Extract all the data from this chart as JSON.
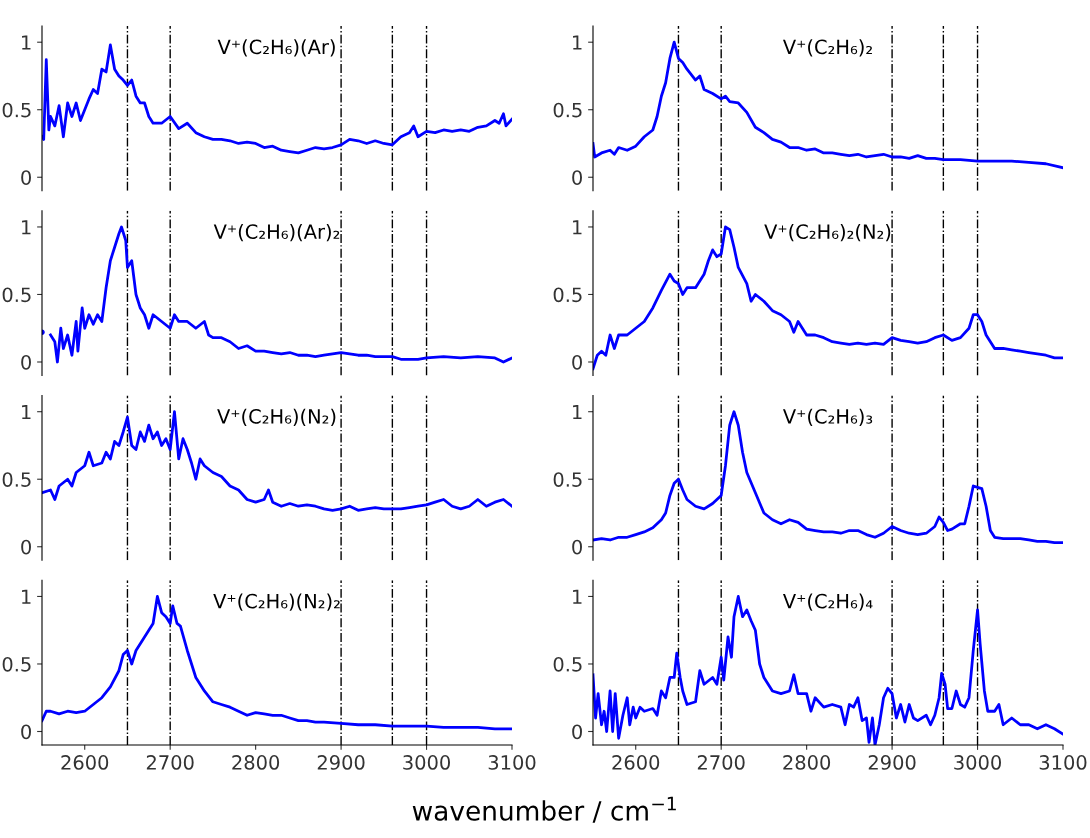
{
  "chart_data": [
    {
      "type": "line",
      "title": "V⁺(C₂H₆)(Ar)",
      "xlim": [
        2550,
        3100
      ],
      "ylim": [
        -0.1,
        1.12
      ],
      "yticks": [
        0,
        0.5,
        1
      ],
      "tick_labels": "y",
      "ref_lines": [
        {
          "axis": "x",
          "value": 2650,
          "color": "#000000",
          "line_style": "dashdot"
        },
        {
          "axis": "x",
          "value": 2700,
          "color": "#000000",
          "line_style": "dashdot"
        },
        {
          "axis": "x",
          "value": 2900,
          "color": "#000000",
          "line_style": "dashdot"
        },
        {
          "axis": "x",
          "value": 2960,
          "color": "#000000",
          "line_style": "dashdot"
        },
        {
          "axis": "x",
          "value": 3000,
          "color": "#000000",
          "line_style": "dashdot"
        }
      ],
      "x": [
        2550,
        2552,
        2555,
        2558,
        2560,
        2565,
        2570,
        2575,
        2580,
        2585,
        2590,
        2595,
        2600,
        2605,
        2610,
        2615,
        2620,
        2625,
        2630,
        2635,
        2640,
        2645,
        2650,
        2655,
        2660,
        2665,
        2670,
        2675,
        2680,
        2690,
        2700,
        2710,
        2720,
        2730,
        2740,
        2750,
        2760,
        2770,
        2780,
        2790,
        2800,
        2810,
        2820,
        2830,
        2840,
        2850,
        2860,
        2870,
        2880,
        2890,
        2900,
        2910,
        2920,
        2930,
        2940,
        2950,
        2960,
        2970,
        2980,
        2985,
        2990,
        3000,
        3010,
        3020,
        3030,
        3040,
        3050,
        3060,
        3070,
        3080,
        3085,
        3090,
        3093,
        3100
      ],
      "series": [
        {
          "color": "#0000ff",
          "values": [
            0.3,
            0.28,
            0.87,
            0.35,
            0.45,
            0.38,
            0.53,
            0.3,
            0.55,
            0.45,
            0.55,
            0.42,
            0.5,
            0.58,
            0.65,
            0.62,
            0.8,
            0.78,
            0.98,
            0.8,
            0.75,
            0.72,
            0.68,
            0.72,
            0.6,
            0.55,
            0.55,
            0.45,
            0.4,
            0.4,
            0.45,
            0.36,
            0.4,
            0.33,
            0.3,
            0.28,
            0.28,
            0.27,
            0.25,
            0.26,
            0.25,
            0.22,
            0.23,
            0.2,
            0.19,
            0.18,
            0.2,
            0.22,
            0.21,
            0.22,
            0.24,
            0.28,
            0.27,
            0.25,
            0.27,
            0.25,
            0.24,
            0.3,
            0.33,
            0.38,
            0.3,
            0.34,
            0.33,
            0.35,
            0.34,
            0.35,
            0.34,
            0.37,
            0.38,
            0.42,
            0.4,
            0.47,
            0.38,
            0.43
          ]
        }
      ]
    },
    {
      "type": "line",
      "title": "V⁺(C₂H₆)₂",
      "xlim": [
        2550,
        3100
      ],
      "ylim": [
        -0.1,
        1.12
      ],
      "yticks": [
        0,
        0.5,
        1
      ],
      "tick_labels": "y",
      "ref_lines": [
        {
          "axis": "x",
          "value": 2650,
          "color": "#000000",
          "line_style": "dashdot"
        },
        {
          "axis": "x",
          "value": 2700,
          "color": "#000000",
          "line_style": "dashdot"
        },
        {
          "axis": "x",
          "value": 2900,
          "color": "#000000",
          "line_style": "dashdot"
        },
        {
          "axis": "x",
          "value": 2960,
          "color": "#000000",
          "line_style": "dashdot"
        },
        {
          "axis": "x",
          "value": 3000,
          "color": "#000000",
          "line_style": "dashdot"
        }
      ],
      "x": [
        2550,
        2552,
        2560,
        2570,
        2575,
        2580,
        2590,
        2600,
        2610,
        2620,
        2625,
        2630,
        2635,
        2640,
        2645,
        2650,
        2655,
        2660,
        2670,
        2675,
        2680,
        2690,
        2700,
        2705,
        2710,
        2720,
        2730,
        2740,
        2750,
        2760,
        2770,
        2780,
        2790,
        2800,
        2810,
        2820,
        2830,
        2840,
        2850,
        2860,
        2870,
        2880,
        2890,
        2900,
        2910,
        2920,
        2930,
        2940,
        2950,
        2960,
        2970,
        2980,
        3000,
        3020,
        3040,
        3060,
        3080,
        3100
      ],
      "series": [
        {
          "color": "#0000ff",
          "values": [
            0.25,
            0.15,
            0.18,
            0.2,
            0.17,
            0.22,
            0.2,
            0.23,
            0.3,
            0.35,
            0.45,
            0.6,
            0.7,
            0.88,
            1.0,
            0.88,
            0.85,
            0.8,
            0.72,
            0.75,
            0.65,
            0.62,
            0.58,
            0.6,
            0.56,
            0.55,
            0.48,
            0.37,
            0.33,
            0.28,
            0.26,
            0.22,
            0.22,
            0.2,
            0.21,
            0.18,
            0.18,
            0.17,
            0.16,
            0.17,
            0.15,
            0.16,
            0.17,
            0.15,
            0.15,
            0.14,
            0.16,
            0.14,
            0.14,
            0.13,
            0.13,
            0.13,
            0.12,
            0.12,
            0.12,
            0.11,
            0.1,
            0.07
          ]
        }
      ]
    },
    {
      "type": "line",
      "title": "V⁺(C₂H₆)(Ar)₂",
      "xlim": [
        2550,
        3100
      ],
      "ylim": [
        -0.1,
        1.12
      ],
      "yticks": [
        0,
        0.5,
        1
      ],
      "tick_labels": "y",
      "ref_lines": [
        {
          "axis": "x",
          "value": 2650,
          "color": "#000000",
          "line_style": "dashdot"
        },
        {
          "axis": "x",
          "value": 2700,
          "color": "#000000",
          "line_style": "dashdot"
        },
        {
          "axis": "x",
          "value": 2900,
          "color": "#000000",
          "line_style": "dashdot"
        },
        {
          "axis": "x",
          "value": 2960,
          "color": "#000000",
          "line_style": "dashdot"
        },
        {
          "axis": "x",
          "value": 3000,
          "color": "#000000",
          "line_style": "dashdot"
        }
      ],
      "x": [
        2550,
        2553,
        2556,
        2560,
        2565,
        2568,
        2572,
        2575,
        2580,
        2585,
        2590,
        2592,
        2597,
        2600,
        2605,
        2610,
        2615,
        2620,
        2625,
        2630,
        2635,
        2640,
        2643,
        2648,
        2650,
        2655,
        2660,
        2665,
        2670,
        2675,
        2680,
        2690,
        2700,
        2705,
        2710,
        2720,
        2730,
        2740,
        2745,
        2750,
        2760,
        2770,
        2780,
        2790,
        2800,
        2810,
        2820,
        2830,
        2840,
        2850,
        2860,
        2870,
        2880,
        2890,
        2900,
        2910,
        2920,
        2930,
        2940,
        2950,
        2960,
        2970,
        2980,
        2990,
        3000,
        3020,
        3040,
        3060,
        3080,
        3090,
        3100
      ],
      "series": [
        {
          "color": "#0000ff",
          "values": [
            0.22,
            null,
            null,
            0.2,
            0.15,
            0.0,
            0.25,
            0.1,
            0.2,
            0.05,
            0.3,
            0.08,
            0.4,
            0.25,
            0.35,
            0.28,
            0.35,
            0.3,
            0.55,
            0.75,
            0.85,
            0.95,
            1.0,
            0.9,
            0.7,
            0.75,
            0.5,
            0.4,
            0.35,
            0.25,
            0.35,
            0.3,
            0.25,
            0.35,
            0.3,
            0.3,
            0.25,
            0.3,
            0.2,
            0.18,
            0.18,
            0.15,
            0.1,
            0.12,
            0.08,
            0.08,
            0.07,
            0.06,
            0.07,
            0.05,
            0.05,
            0.04,
            0.05,
            0.06,
            0.07,
            0.06,
            0.05,
            0.05,
            0.04,
            0.04,
            0.04,
            0.02,
            0.02,
            0.02,
            0.03,
            0.04,
            0.03,
            0.04,
            0.03,
            0.0,
            0.03
          ]
        }
      ]
    },
    {
      "type": "line",
      "title": "V⁺(C₂H₆)₂(N₂)",
      "xlim": [
        2550,
        3100
      ],
      "ylim": [
        -0.1,
        1.12
      ],
      "yticks": [
        0,
        0.5,
        1
      ],
      "tick_labels": "y",
      "ref_lines": [
        {
          "axis": "x",
          "value": 2650,
          "color": "#000000",
          "line_style": "dashdot"
        },
        {
          "axis": "x",
          "value": 2700,
          "color": "#000000",
          "line_style": "dashdot"
        },
        {
          "axis": "x",
          "value": 2900,
          "color": "#000000",
          "line_style": "dashdot"
        },
        {
          "axis": "x",
          "value": 2960,
          "color": "#000000",
          "line_style": "dashdot"
        },
        {
          "axis": "x",
          "value": 3000,
          "color": "#000000",
          "line_style": "dashdot"
        }
      ],
      "x": [
        2550,
        2555,
        2560,
        2565,
        2570,
        2575,
        2580,
        2590,
        2600,
        2610,
        2620,
        2630,
        2640,
        2645,
        2650,
        2655,
        2660,
        2670,
        2680,
        2685,
        2690,
        2695,
        2700,
        2705,
        2710,
        2715,
        2720,
        2730,
        2735,
        2740,
        2750,
        2760,
        2770,
        2780,
        2785,
        2790,
        2800,
        2810,
        2820,
        2830,
        2840,
        2850,
        2860,
        2870,
        2880,
        2890,
        2900,
        2910,
        2920,
        2930,
        2940,
        2950,
        2960,
        2970,
        2980,
        2990,
        2995,
        3000,
        3005,
        3010,
        3020,
        3030,
        3040,
        3050,
        3060,
        3070,
        3080,
        3090,
        3100
      ],
      "series": [
        {
          "color": "#0000ff",
          "values": [
            -0.05,
            0.05,
            0.08,
            0.05,
            0.2,
            0.1,
            0.2,
            0.2,
            0.25,
            0.3,
            0.4,
            0.53,
            0.65,
            0.6,
            0.58,
            0.5,
            0.55,
            0.55,
            0.65,
            0.75,
            0.83,
            0.78,
            0.8,
            1.0,
            0.98,
            0.85,
            0.7,
            0.58,
            0.45,
            0.5,
            0.45,
            0.38,
            0.35,
            0.3,
            0.22,
            0.3,
            0.2,
            0.2,
            0.18,
            0.15,
            0.14,
            0.13,
            0.14,
            0.13,
            0.14,
            0.13,
            0.18,
            0.16,
            0.15,
            0.14,
            0.15,
            0.18,
            0.2,
            0.16,
            0.18,
            0.25,
            0.35,
            0.35,
            0.3,
            0.2,
            0.1,
            0.1,
            0.09,
            0.08,
            0.07,
            0.06,
            0.05,
            0.03,
            0.03
          ]
        }
      ]
    },
    {
      "type": "line",
      "title": "V⁺(C₂H₆)(N₂)",
      "xlim": [
        2550,
        3100
      ],
      "ylim": [
        -0.1,
        1.12
      ],
      "yticks": [
        0,
        0.5,
        1
      ],
      "tick_labels": "y",
      "ref_lines": [
        {
          "axis": "x",
          "value": 2650,
          "color": "#000000",
          "line_style": "dashdot"
        },
        {
          "axis": "x",
          "value": 2700,
          "color": "#000000",
          "line_style": "dashdot"
        },
        {
          "axis": "x",
          "value": 2900,
          "color": "#000000",
          "line_style": "dashdot"
        },
        {
          "axis": "x",
          "value": 2960,
          "color": "#000000",
          "line_style": "dashdot"
        },
        {
          "axis": "x",
          "value": 3000,
          "color": "#000000",
          "line_style": "dashdot"
        }
      ],
      "x": [
        2550,
        2560,
        2565,
        2570,
        2580,
        2585,
        2590,
        2600,
        2605,
        2610,
        2620,
        2625,
        2630,
        2635,
        2640,
        2645,
        2650,
        2655,
        2660,
        2665,
        2670,
        2675,
        2680,
        2685,
        2690,
        2695,
        2700,
        2705,
        2710,
        2715,
        2720,
        2725,
        2730,
        2735,
        2740,
        2750,
        2760,
        2770,
        2780,
        2790,
        2800,
        2810,
        2815,
        2820,
        2830,
        2840,
        2850,
        2860,
        2870,
        2880,
        2890,
        2900,
        2910,
        2920,
        2930,
        2940,
        2950,
        2960,
        2970,
        2980,
        2990,
        3000,
        3010,
        3020,
        3030,
        3040,
        3050,
        3060,
        3070,
        3080,
        3090,
        3100
      ],
      "series": [
        {
          "color": "#0000ff",
          "values": [
            0.4,
            0.42,
            0.35,
            0.45,
            0.5,
            0.45,
            0.55,
            0.6,
            0.7,
            0.6,
            0.62,
            0.7,
            0.65,
            0.78,
            0.75,
            0.85,
            0.96,
            0.75,
            0.72,
            0.85,
            0.78,
            0.9,
            0.8,
            0.85,
            0.75,
            0.8,
            0.72,
            1.0,
            0.65,
            0.8,
            0.72,
            0.62,
            0.5,
            0.65,
            0.6,
            0.55,
            0.52,
            0.45,
            0.42,
            0.35,
            0.33,
            0.35,
            0.42,
            0.33,
            0.3,
            0.32,
            0.3,
            0.31,
            0.3,
            0.28,
            0.27,
            0.28,
            0.3,
            0.27,
            0.28,
            0.29,
            0.28,
            0.28,
            0.28,
            0.29,
            0.3,
            0.31,
            0.33,
            0.35,
            0.3,
            0.28,
            0.3,
            0.35,
            0.3,
            0.33,
            0.35,
            0.3
          ]
        }
      ]
    },
    {
      "type": "line",
      "title": "V⁺(C₂H₆)₃",
      "xlim": [
        2550,
        3100
      ],
      "ylim": [
        -0.1,
        1.12
      ],
      "yticks": [
        0,
        0.5,
        1
      ],
      "tick_labels": "y",
      "ref_lines": [
        {
          "axis": "x",
          "value": 2650,
          "color": "#000000",
          "line_style": "dashdot"
        },
        {
          "axis": "x",
          "value": 2700,
          "color": "#000000",
          "line_style": "dashdot"
        },
        {
          "axis": "x",
          "value": 2900,
          "color": "#000000",
          "line_style": "dashdot"
        },
        {
          "axis": "x",
          "value": 2960,
          "color": "#000000",
          "line_style": "dashdot"
        },
        {
          "axis": "x",
          "value": 3000,
          "color": "#000000",
          "line_style": "dashdot"
        }
      ],
      "x": [
        2550,
        2560,
        2570,
        2580,
        2590,
        2600,
        2610,
        2620,
        2630,
        2635,
        2640,
        2645,
        2650,
        2655,
        2660,
        2670,
        2680,
        2690,
        2700,
        2705,
        2710,
        2715,
        2720,
        2725,
        2730,
        2740,
        2750,
        2760,
        2770,
        2780,
        2790,
        2800,
        2810,
        2820,
        2830,
        2840,
        2850,
        2860,
        2870,
        2880,
        2890,
        2900,
        2910,
        2920,
        2930,
        2940,
        2950,
        2955,
        2960,
        2965,
        2970,
        2980,
        2985,
        2990,
        2995,
        3000,
        3005,
        3010,
        3015,
        3020,
        3030,
        3040,
        3050,
        3060,
        3070,
        3080,
        3090,
        3100
      ],
      "series": [
        {
          "color": "#0000ff",
          "values": [
            0.05,
            0.06,
            0.05,
            0.07,
            0.07,
            0.09,
            0.11,
            0.14,
            0.2,
            0.25,
            0.38,
            0.47,
            0.5,
            0.42,
            0.35,
            0.3,
            0.28,
            0.32,
            0.38,
            0.6,
            0.9,
            1.0,
            0.9,
            0.7,
            0.55,
            0.4,
            0.25,
            0.2,
            0.17,
            0.2,
            0.18,
            0.13,
            0.12,
            0.11,
            0.11,
            0.1,
            0.12,
            0.12,
            0.09,
            0.07,
            0.1,
            0.15,
            0.12,
            0.1,
            0.09,
            0.1,
            0.15,
            0.22,
            0.18,
            0.12,
            0.13,
            0.17,
            0.17,
            0.3,
            0.45,
            0.44,
            0.43,
            0.3,
            0.12,
            0.07,
            0.06,
            0.06,
            0.06,
            0.05,
            0.04,
            0.04,
            0.03,
            0.03
          ]
        }
      ]
    },
    {
      "type": "line",
      "title": "V⁺(C₂H₆)(N₂)₂",
      "xlim": [
        2550,
        3100
      ],
      "ylim": [
        -0.1,
        1.12
      ],
      "yticks": [
        0,
        0.5,
        1
      ],
      "xticks": [
        2600,
        2700,
        2800,
        2900,
        3000,
        3100
      ],
      "ref_lines": [
        {
          "axis": "x",
          "value": 2650,
          "color": "#000000",
          "line_style": "dashdot"
        },
        {
          "axis": "x",
          "value": 2700,
          "color": "#000000",
          "line_style": "dashdot"
        },
        {
          "axis": "x",
          "value": 2900,
          "color": "#000000",
          "line_style": "dashdot"
        },
        {
          "axis": "x",
          "value": 2960,
          "color": "#000000",
          "line_style": "dashdot"
        },
        {
          "axis": "x",
          "value": 3000,
          "color": "#000000",
          "line_style": "dashdot"
        }
      ],
      "x": [
        2550,
        2555,
        2560,
        2570,
        2580,
        2590,
        2600,
        2610,
        2620,
        2630,
        2640,
        2645,
        2650,
        2655,
        2660,
        2670,
        2680,
        2685,
        2690,
        2695,
        2700,
        2703,
        2708,
        2712,
        2720,
        2730,
        2740,
        2750,
        2760,
        2770,
        2780,
        2790,
        2800,
        2810,
        2820,
        2830,
        2840,
        2850,
        2860,
        2870,
        2880,
        2900,
        2920,
        2940,
        2960,
        2980,
        3000,
        3020,
        3040,
        3060,
        3080,
        3100
      ],
      "series": [
        {
          "color": "#0000ff",
          "values": [
            0.08,
            0.15,
            0.15,
            0.13,
            0.15,
            0.14,
            0.15,
            0.2,
            0.25,
            0.33,
            0.45,
            0.57,
            0.6,
            0.5,
            0.6,
            0.7,
            0.8,
            1.0,
            0.88,
            0.85,
            0.8,
            0.93,
            0.8,
            0.78,
            0.6,
            0.4,
            0.3,
            0.22,
            0.2,
            0.18,
            0.15,
            0.12,
            0.14,
            0.13,
            0.12,
            0.12,
            0.1,
            0.08,
            0.08,
            0.07,
            0.07,
            0.06,
            0.05,
            0.05,
            0.04,
            0.04,
            0.04,
            0.03,
            0.03,
            0.03,
            0.02,
            0.02
          ]
        }
      ]
    },
    {
      "type": "line",
      "title": "V⁺(C₂H₆)₄",
      "xlim": [
        2550,
        3100
      ],
      "ylim": [
        -0.1,
        1.12
      ],
      "yticks": [
        0,
        0.5,
        1
      ],
      "xticks": [
        2600,
        2700,
        2800,
        2900,
        3000,
        3100
      ],
      "xlabel": "wavenumber / cm$^{−1}$",
      "ref_lines": [
        {
          "axis": "x",
          "value": 2650,
          "color": "#000000",
          "line_style": "dashdot"
        },
        {
          "axis": "x",
          "value": 2700,
          "color": "#000000",
          "line_style": "dashdot"
        },
        {
          "axis": "x",
          "value": 2900,
          "color": "#000000",
          "line_style": "dashdot"
        },
        {
          "axis": "x",
          "value": 2960,
          "color": "#000000",
          "line_style": "dashdot"
        },
        {
          "axis": "x",
          "value": 3000,
          "color": "#000000",
          "line_style": "dashdot"
        }
      ],
      "x": [
        2550,
        2553,
        2556,
        2560,
        2563,
        2566,
        2570,
        2573,
        2576,
        2580,
        2585,
        2590,
        2593,
        2597,
        2600,
        2605,
        2610,
        2620,
        2625,
        2630,
        2635,
        2640,
        2645,
        2648,
        2652,
        2655,
        2660,
        2670,
        2675,
        2680,
        2690,
        2695,
        2700,
        2703,
        2708,
        2712,
        2715,
        2720,
        2725,
        2730,
        2735,
        2740,
        2745,
        2750,
        2760,
        2770,
        2780,
        2785,
        2790,
        2800,
        2805,
        2810,
        2820,
        2830,
        2840,
        2845,
        2850,
        2855,
        2860,
        2865,
        2870,
        2873,
        2877,
        2880,
        2885,
        2890,
        2895,
        2900,
        2905,
        2910,
        2915,
        2920,
        2925,
        2930,
        2940,
        2945,
        2950,
        2955,
        2958,
        2962,
        2965,
        2970,
        2975,
        2980,
        2985,
        2990,
        2995,
        3000,
        3003,
        3008,
        3012,
        3020,
        3025,
        3030,
        3040,
        3050,
        3060,
        3070,
        3080,
        3090,
        3100
      ],
      "series": [
        {
          "color": "#0000ff",
          "values": [
            0.42,
            0.1,
            0.28,
            0.05,
            0.15,
            0.0,
            0.3,
            0.0,
            0.28,
            -0.05,
            0.12,
            0.25,
            0.05,
            0.18,
            0.1,
            0.18,
            0.15,
            0.17,
            0.12,
            0.3,
            0.25,
            0.4,
            0.4,
            0.58,
            0.4,
            0.3,
            0.2,
            0.22,
            0.45,
            0.35,
            0.4,
            0.35,
            0.55,
            0.38,
            0.7,
            0.55,
            0.85,
            1.0,
            0.85,
            0.9,
            0.82,
            0.75,
            0.5,
            0.4,
            0.3,
            0.28,
            0.3,
            0.42,
            0.28,
            0.28,
            0.15,
            0.25,
            0.18,
            0.2,
            0.18,
            0.05,
            0.2,
            0.18,
            0.25,
            0.08,
            0.1,
            -0.08,
            0.1,
            -0.1,
            0.05,
            0.25,
            0.32,
            0.28,
            0.1,
            0.2,
            0.07,
            0.2,
            0.1,
            0.08,
            0.12,
            0.05,
            0.12,
            0.25,
            0.43,
            0.35,
            0.17,
            0.17,
            0.3,
            0.2,
            0.18,
            0.25,
            0.6,
            0.9,
            0.65,
            0.3,
            0.15,
            0.15,
            0.2,
            0.05,
            0.1,
            0.05,
            0.05,
            0.02,
            0.05,
            0.02,
            -0.02
          ]
        }
      ]
    }
  ]
}
